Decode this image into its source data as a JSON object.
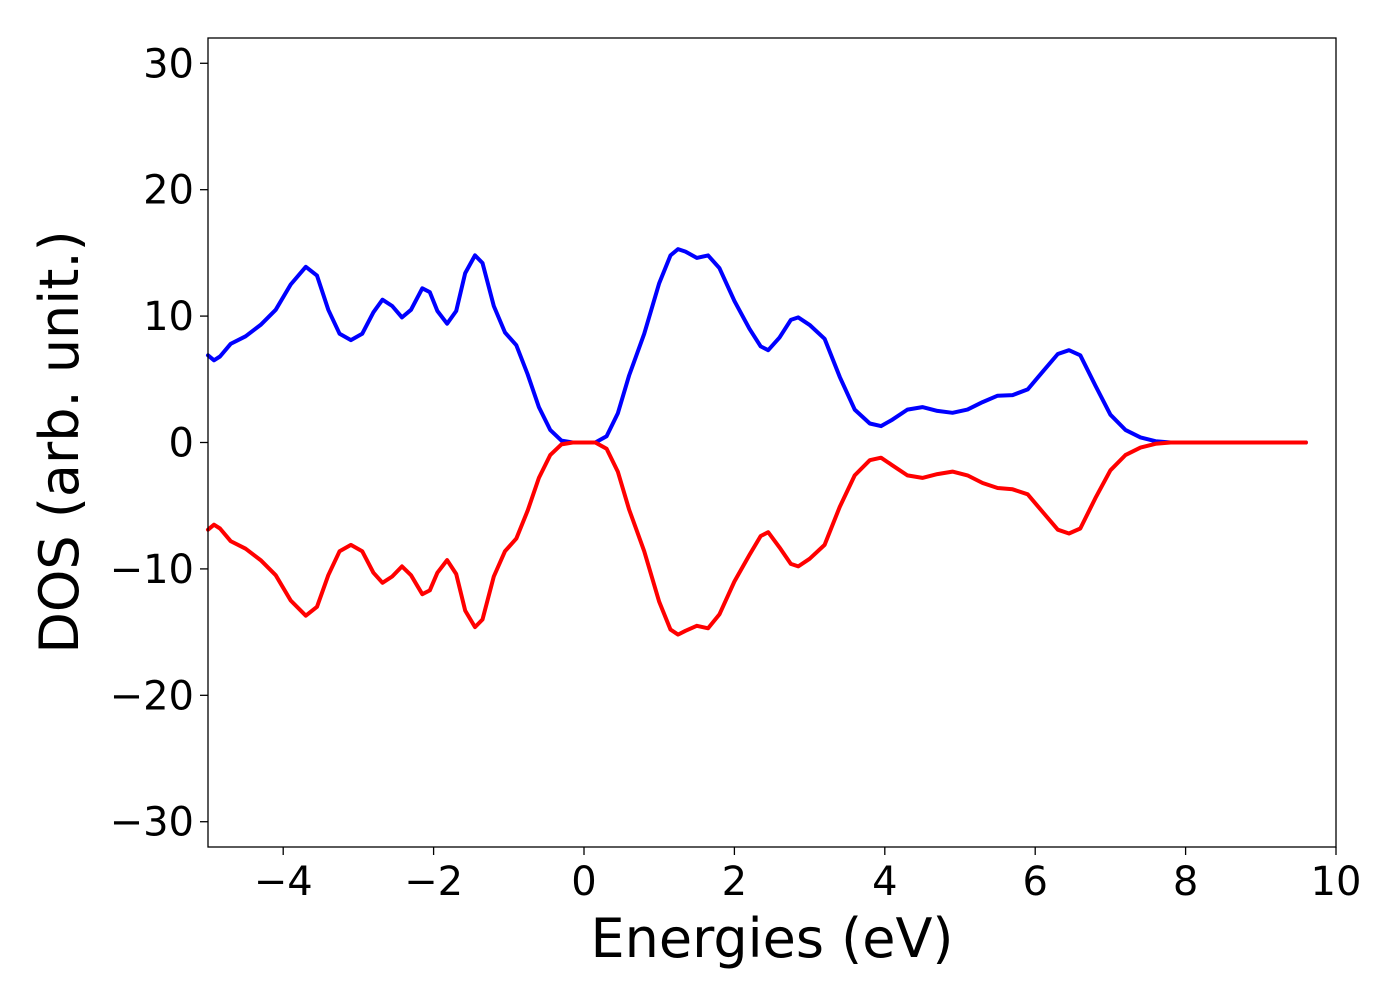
{
  "chart_data": {
    "type": "line",
    "title": "",
    "xlabel": "Energies (eV)",
    "ylabel": "DOS (arb. unit.)",
    "xlim": [
      -5,
      10
    ],
    "ylim": [
      -32,
      32
    ],
    "xticks": [
      -4,
      -2,
      0,
      2,
      4,
      6,
      8,
      10
    ],
    "yticks": [
      -30,
      -20,
      -10,
      0,
      10,
      20,
      30
    ],
    "xtick_labels": [
      "−4",
      "−2",
      "0",
      "2",
      "4",
      "6",
      "8",
      "10"
    ],
    "ytick_labels": [
      "−30",
      "−20",
      "−10",
      "0",
      "10",
      "20",
      "30"
    ],
    "grid": false,
    "legend": "none",
    "series": [
      {
        "color": "#0000ff",
        "points": [
          [
            -5.0,
            6.9
          ],
          [
            -4.92,
            6.5
          ],
          [
            -4.84,
            6.8
          ],
          [
            -4.7,
            7.8
          ],
          [
            -4.5,
            8.4
          ],
          [
            -4.3,
            9.3
          ],
          [
            -4.1,
            10.5
          ],
          [
            -3.9,
            12.5
          ],
          [
            -3.7,
            13.9
          ],
          [
            -3.55,
            13.2
          ],
          [
            -3.4,
            10.5
          ],
          [
            -3.25,
            8.6
          ],
          [
            -3.1,
            8.1
          ],
          [
            -2.95,
            8.6
          ],
          [
            -2.8,
            10.3
          ],
          [
            -2.68,
            11.3
          ],
          [
            -2.55,
            10.8
          ],
          [
            -2.42,
            9.9
          ],
          [
            -2.3,
            10.5
          ],
          [
            -2.15,
            12.2
          ],
          [
            -2.05,
            11.9
          ],
          [
            -1.95,
            10.4
          ],
          [
            -1.82,
            9.4
          ],
          [
            -1.7,
            10.4
          ],
          [
            -1.58,
            13.4
          ],
          [
            -1.45,
            14.8
          ],
          [
            -1.35,
            14.2
          ],
          [
            -1.2,
            10.8
          ],
          [
            -1.05,
            8.7
          ],
          [
            -0.9,
            7.7
          ],
          [
            -0.75,
            5.4
          ],
          [
            -0.6,
            2.8
          ],
          [
            -0.45,
            1.0
          ],
          [
            -0.3,
            0.15
          ],
          [
            -0.15,
            0.0
          ],
          [
            0.0,
            0.0
          ],
          [
            0.15,
            0.0
          ],
          [
            0.3,
            0.5
          ],
          [
            0.45,
            2.3
          ],
          [
            0.6,
            5.3
          ],
          [
            0.8,
            8.6
          ],
          [
            1.0,
            12.6
          ],
          [
            1.15,
            14.8
          ],
          [
            1.25,
            15.3
          ],
          [
            1.35,
            15.1
          ],
          [
            1.5,
            14.6
          ],
          [
            1.65,
            14.8
          ],
          [
            1.8,
            13.8
          ],
          [
            2.0,
            11.2
          ],
          [
            2.2,
            9.0
          ],
          [
            2.35,
            7.6
          ],
          [
            2.45,
            7.3
          ],
          [
            2.6,
            8.3
          ],
          [
            2.75,
            9.7
          ],
          [
            2.85,
            9.9
          ],
          [
            3.0,
            9.3
          ],
          [
            3.2,
            8.2
          ],
          [
            3.4,
            5.2
          ],
          [
            3.6,
            2.6
          ],
          [
            3.8,
            1.5
          ],
          [
            3.95,
            1.3
          ],
          [
            4.1,
            1.8
          ],
          [
            4.3,
            2.6
          ],
          [
            4.5,
            2.8
          ],
          [
            4.7,
            2.5
          ],
          [
            4.9,
            2.35
          ],
          [
            5.1,
            2.6
          ],
          [
            5.3,
            3.2
          ],
          [
            5.5,
            3.7
          ],
          [
            5.7,
            3.75
          ],
          [
            5.9,
            4.2
          ],
          [
            6.1,
            5.6
          ],
          [
            6.3,
            7.0
          ],
          [
            6.45,
            7.3
          ],
          [
            6.6,
            6.9
          ],
          [
            6.8,
            4.5
          ],
          [
            7.0,
            2.2
          ],
          [
            7.2,
            1.0
          ],
          [
            7.4,
            0.4
          ],
          [
            7.6,
            0.1
          ],
          [
            7.8,
            0.0
          ],
          [
            8.5,
            0.0
          ],
          [
            9.6,
            0.0
          ]
        ]
      },
      {
        "color": "#ff0000",
        "points": [
          [
            -5.0,
            -6.9
          ],
          [
            -4.92,
            -6.5
          ],
          [
            -4.84,
            -6.8
          ],
          [
            -4.7,
            -7.8
          ],
          [
            -4.5,
            -8.4
          ],
          [
            -4.3,
            -9.3
          ],
          [
            -4.1,
            -10.5
          ],
          [
            -3.9,
            -12.5
          ],
          [
            -3.7,
            -13.7
          ],
          [
            -3.55,
            -13.0
          ],
          [
            -3.4,
            -10.5
          ],
          [
            -3.25,
            -8.6
          ],
          [
            -3.1,
            -8.1
          ],
          [
            -2.95,
            -8.6
          ],
          [
            -2.8,
            -10.3
          ],
          [
            -2.68,
            -11.1
          ],
          [
            -2.55,
            -10.6
          ],
          [
            -2.42,
            -9.8
          ],
          [
            -2.3,
            -10.5
          ],
          [
            -2.15,
            -12.0
          ],
          [
            -2.05,
            -11.7
          ],
          [
            -1.95,
            -10.3
          ],
          [
            -1.82,
            -9.3
          ],
          [
            -1.7,
            -10.4
          ],
          [
            -1.58,
            -13.3
          ],
          [
            -1.45,
            -14.6
          ],
          [
            -1.35,
            -14.0
          ],
          [
            -1.2,
            -10.6
          ],
          [
            -1.05,
            -8.6
          ],
          [
            -0.9,
            -7.6
          ],
          [
            -0.75,
            -5.4
          ],
          [
            -0.6,
            -2.8
          ],
          [
            -0.45,
            -1.0
          ],
          [
            -0.3,
            -0.15
          ],
          [
            -0.15,
            0.0
          ],
          [
            0.0,
            0.0
          ],
          [
            0.15,
            0.0
          ],
          [
            0.3,
            -0.5
          ],
          [
            0.45,
            -2.3
          ],
          [
            0.6,
            -5.3
          ],
          [
            0.8,
            -8.6
          ],
          [
            1.0,
            -12.6
          ],
          [
            1.15,
            -14.8
          ],
          [
            1.25,
            -15.2
          ],
          [
            1.35,
            -14.9
          ],
          [
            1.5,
            -14.5
          ],
          [
            1.65,
            -14.7
          ],
          [
            1.8,
            -13.6
          ],
          [
            2.0,
            -11.0
          ],
          [
            2.2,
            -8.9
          ],
          [
            2.35,
            -7.4
          ],
          [
            2.45,
            -7.1
          ],
          [
            2.6,
            -8.3
          ],
          [
            2.75,
            -9.6
          ],
          [
            2.85,
            -9.8
          ],
          [
            3.0,
            -9.2
          ],
          [
            3.2,
            -8.1
          ],
          [
            3.4,
            -5.1
          ],
          [
            3.6,
            -2.6
          ],
          [
            3.8,
            -1.4
          ],
          [
            3.95,
            -1.2
          ],
          [
            4.1,
            -1.8
          ],
          [
            4.3,
            -2.6
          ],
          [
            4.5,
            -2.8
          ],
          [
            4.7,
            -2.5
          ],
          [
            4.9,
            -2.3
          ],
          [
            5.1,
            -2.6
          ],
          [
            5.3,
            -3.2
          ],
          [
            5.5,
            -3.6
          ],
          [
            5.7,
            -3.7
          ],
          [
            5.9,
            -4.1
          ],
          [
            6.1,
            -5.5
          ],
          [
            6.3,
            -6.9
          ],
          [
            6.45,
            -7.2
          ],
          [
            6.6,
            -6.8
          ],
          [
            6.8,
            -4.4
          ],
          [
            7.0,
            -2.2
          ],
          [
            7.2,
            -1.0
          ],
          [
            7.4,
            -0.4
          ],
          [
            7.6,
            -0.1
          ],
          [
            7.8,
            0.0
          ],
          [
            8.5,
            0.0
          ],
          [
            9.6,
            0.0
          ]
        ]
      }
    ]
  }
}
